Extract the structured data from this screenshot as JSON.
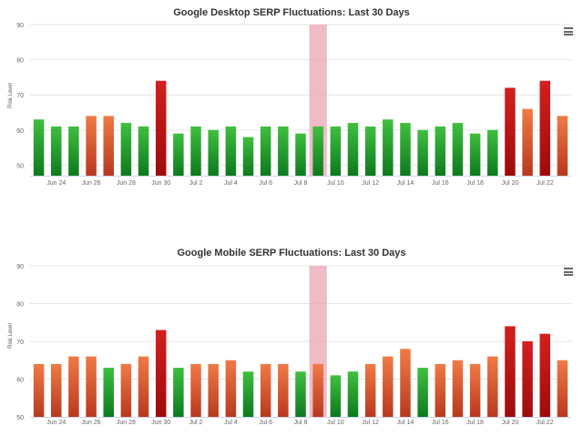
{
  "chart_data": [
    {
      "type": "bar",
      "title": "Google Desktop SERP Fluctuations: Last 30 Days",
      "ylabel": "Risk Level",
      "ylim": [
        47,
        90
      ],
      "yticks": [
        50,
        60,
        70,
        80,
        90
      ],
      "x_tick_labels": [
        "Jun 24",
        "Jun 26",
        "Jun 28",
        "Jun 30",
        "Jul 2",
        "Jul 4",
        "Jul 6",
        "Jul 8",
        "Jul 10",
        "Jul 12",
        "Jul 14",
        "Jul 16",
        "Jul 18",
        "Jul 20",
        "Jul 22"
      ],
      "x_tick_start_index": 1,
      "x_tick_step": 2,
      "highlight_band_index": 16,
      "highlight_color": "#ebaab9",
      "values": [
        63,
        61,
        61,
        64,
        64,
        62,
        61,
        74,
        59,
        61,
        60,
        61,
        58,
        61,
        61,
        59,
        61,
        61,
        62,
        61,
        63,
        62,
        60,
        61,
        62,
        59,
        60,
        72,
        66,
        74,
        64
      ],
      "colors": {
        "green": [
          "#3fbf3f",
          "#0d7a1e"
        ],
        "orange": [
          "#f07a45",
          "#b8391f"
        ],
        "red": [
          "#d41f1f",
          "#9e0b0b"
        ]
      }
    },
    {
      "type": "bar",
      "title": "Google Mobile SERP Fluctuations: Last 30 Days",
      "ylabel": "Risk Level",
      "ylim": [
        50,
        90
      ],
      "yticks": [
        50,
        60,
        70,
        80,
        90
      ],
      "x_tick_labels": [
        "Jun 24",
        "Jun 26",
        "Jun 28",
        "Jun 30",
        "Jul 2",
        "Jul 4",
        "Jul 6",
        "Jul 8",
        "Jul 10",
        "Jul 12",
        "Jul 14",
        "Jul 16",
        "Jul 18",
        "Jul 20",
        "Jul 22"
      ],
      "x_tick_start_index": 1,
      "x_tick_step": 2,
      "highlight_band_index": 16,
      "highlight_color": "#ebaab9",
      "values": [
        64,
        64,
        66,
        66,
        63,
        64,
        66,
        73,
        63,
        64,
        64,
        65,
        62,
        64,
        64,
        62,
        64,
        61,
        62,
        64,
        66,
        68,
        63,
        64,
        65,
        64,
        66,
        74,
        70,
        72,
        65
      ],
      "colors": {
        "green": [
          "#3fbf3f",
          "#0d7a1e"
        ],
        "orange": [
          "#f07a45",
          "#b8391f"
        ],
        "red": [
          "#d41f1f",
          "#9e0b0b"
        ]
      }
    }
  ]
}
